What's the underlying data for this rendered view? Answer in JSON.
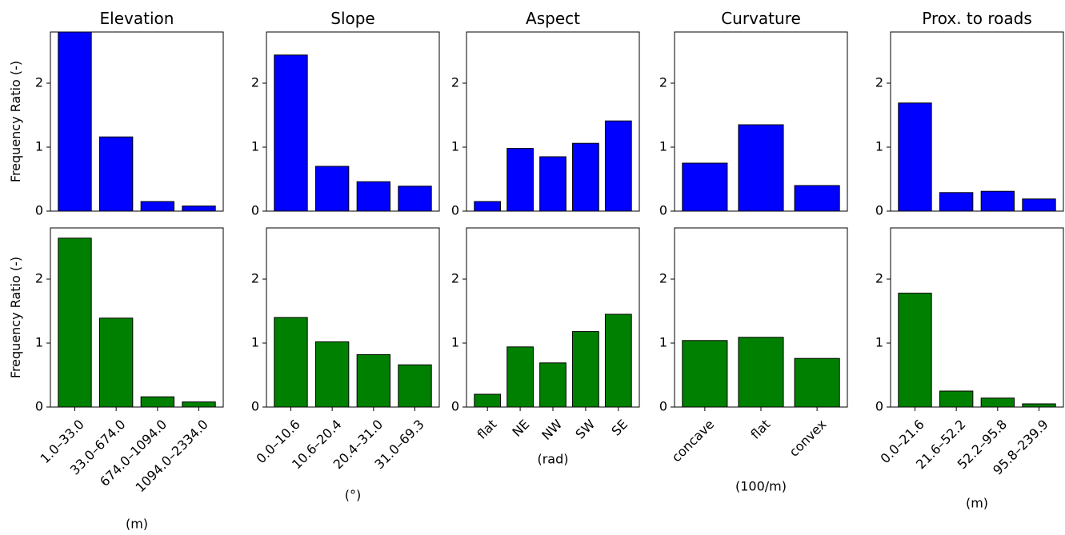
{
  "chart_data": [
    {
      "type": "bar",
      "title": "Elevation",
      "ylabel": "Frequency Ratio (-)",
      "values": [
        2.95,
        1.16,
        0.15,
        0.08
      ],
      "color": "#0000ff",
      "ylim": [
        0,
        2.8
      ],
      "yticks": [
        0,
        1,
        2
      ]
    },
    {
      "type": "bar",
      "title": "Slope",
      "values": [
        2.44,
        0.7,
        0.46,
        0.39
      ],
      "color": "#0000ff",
      "ylim": [
        0,
        2.8
      ],
      "yticks": [
        0,
        1,
        2
      ]
    },
    {
      "type": "bar",
      "title": "Aspect",
      "values": [
        0.15,
        0.98,
        0.85,
        1.06,
        1.41
      ],
      "color": "#0000ff",
      "ylim": [
        0,
        2.8
      ],
      "yticks": [
        0,
        1,
        2
      ]
    },
    {
      "type": "bar",
      "title": "Curvature",
      "values": [
        0.75,
        1.35,
        0.4
      ],
      "color": "#0000ff",
      "ylim": [
        0,
        2.8
      ],
      "yticks": [
        0,
        1,
        2
      ]
    },
    {
      "type": "bar",
      "title": "Prox. to roads",
      "values": [
        1.69,
        0.29,
        0.31,
        0.19
      ],
      "color": "#0000ff",
      "ylim": [
        0,
        2.8
      ],
      "yticks": [
        0,
        1,
        2
      ]
    },
    {
      "type": "bar",
      "ylabel": "Frequency Ratio (-)",
      "xlabel": "(m)",
      "categories": [
        "1.0–33.0",
        "33.0–674.0",
        "674.0–1094.0",
        "1094.0–2334.0"
      ],
      "values": [
        2.64,
        1.39,
        0.16,
        0.08
      ],
      "color": "#008000",
      "ylim": [
        0,
        2.8
      ],
      "yticks": [
        0,
        1,
        2
      ]
    },
    {
      "type": "bar",
      "xlabel": "(°)",
      "categories": [
        "0.0–10.6",
        "10.6–20.4",
        "20.4–31.0",
        "31.0–69.3"
      ],
      "values": [
        1.4,
        1.02,
        0.82,
        0.66
      ],
      "color": "#008000",
      "ylim": [
        0,
        2.8
      ],
      "yticks": [
        0,
        1,
        2
      ]
    },
    {
      "type": "bar",
      "xlabel": "(rad)",
      "categories": [
        "flat",
        "NE",
        "NW",
        "SW",
        "SE"
      ],
      "values": [
        0.2,
        0.94,
        0.69,
        1.18,
        1.45
      ],
      "color": "#008000",
      "ylim": [
        0,
        2.8
      ],
      "yticks": [
        0,
        1,
        2
      ]
    },
    {
      "type": "bar",
      "xlabel": "(100/m)",
      "categories": [
        "concave",
        "flat",
        "convex"
      ],
      "values": [
        1.04,
        1.09,
        0.76
      ],
      "color": "#008000",
      "ylim": [
        0,
        2.8
      ],
      "yticks": [
        0,
        1,
        2
      ]
    },
    {
      "type": "bar",
      "xlabel": "(m)",
      "categories": [
        "0.0–21.6",
        "21.6–52.2",
        "52.2–95.8",
        "95.8–239.9"
      ],
      "values": [
        1.78,
        0.25,
        0.14,
        0.05
      ],
      "color": "#008000",
      "ylim": [
        0,
        2.8
      ],
      "yticks": [
        0,
        1,
        2
      ]
    }
  ]
}
